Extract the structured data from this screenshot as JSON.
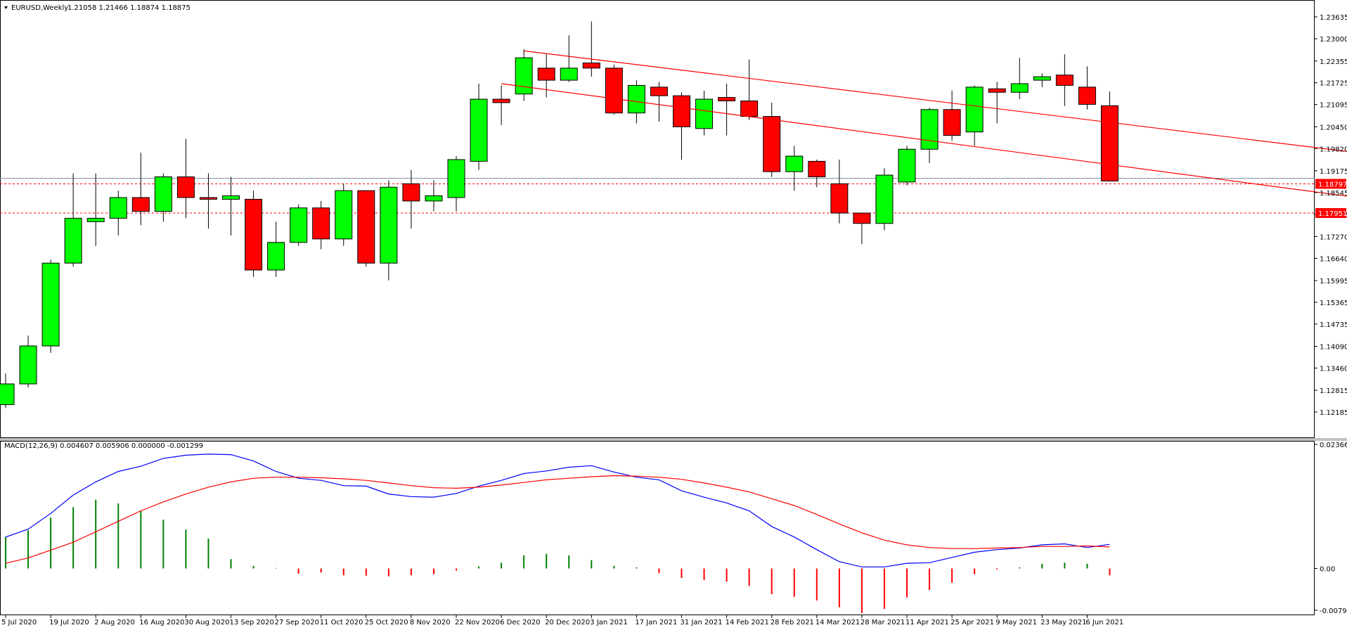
{
  "header": {
    "symbol": "EURUSD,Weekly",
    "ohlc": "1.21058 1.21466 1.18874 1.18875"
  },
  "colors": {
    "bull": "#00ff00",
    "bear": "#ff0000",
    "macd": "#0000ff",
    "signal": "#ff0000",
    "hist_pos": "#008000",
    "hist_neg": "#ff0000",
    "trend": "#ff0000"
  },
  "price_levels": {
    "current": "1.18797",
    "support": "1.17951"
  },
  "price_ticks": [
    "1.23635",
    "1.23000",
    "1.22355",
    "1.21725",
    "1.21095",
    "1.20450",
    "1.19820",
    "1.19175",
    "1.18545",
    "1.17905",
    "1.17270",
    "1.16640",
    "1.15995",
    "1.15365",
    "1.14735",
    "1.14090",
    "1.13460",
    "1.12815",
    "1.12185"
  ],
  "macd_header": "MACD(12,26,9) 0.004607 0.005906 0.000000 -0.001299",
  "macd_ticks": [
    "0.023663",
    "0.00",
    "-0.007975"
  ],
  "date_labels": [
    "5 Jul 2020",
    "19 Jul 2020",
    "2 Aug 2020",
    "16 Aug 2020",
    "30 Aug 2020",
    "13 Sep 2020",
    "27 Sep 2020",
    "11 Oct 2020",
    "25 Oct 2020",
    "8 Nov 2020",
    "22 Nov 2020",
    "6 Dec 2020",
    "20 Dec 2020",
    "3 Jan 2021",
    "17 Jan 2021",
    "31 Jan 2021",
    "14 Feb 2021",
    "28 Feb 2021",
    "14 Mar 2021",
    "28 Mar 2021",
    "11 Apr 2021",
    "25 Apr 2021",
    "9 May 2021",
    "23 May 2021",
    "6 Jun 2021"
  ],
  "chart_data": [
    {
      "type": "candlestick",
      "title": "EURUSD,Weekly",
      "ylim": [
        1.12185,
        1.23635
      ],
      "candles": [
        {
          "o": 1.124,
          "h": 1.133,
          "l": 1.123,
          "c": 1.13
        },
        {
          "o": 1.13,
          "h": 1.144,
          "l": 1.129,
          "c": 1.141
        },
        {
          "o": 1.141,
          "h": 1.166,
          "l": 1.139,
          "c": 1.165
        },
        {
          "o": 1.165,
          "h": 1.191,
          "l": 1.164,
          "c": 1.178
        },
        {
          "o": 1.177,
          "h": 1.191,
          "l": 1.17,
          "c": 1.178
        },
        {
          "o": 1.178,
          "h": 1.186,
          "l": 1.173,
          "c": 1.184
        },
        {
          "o": 1.184,
          "h": 1.197,
          "l": 1.176,
          "c": 1.18
        },
        {
          "o": 1.18,
          "h": 1.191,
          "l": 1.177,
          "c": 1.19
        },
        {
          "o": 1.19,
          "h": 1.201,
          "l": 1.178,
          "c": 1.184
        },
        {
          "o": 1.184,
          "h": 1.191,
          "l": 1.175,
          "c": 1.1835
        },
        {
          "o": 1.1835,
          "h": 1.19,
          "l": 1.173,
          "c": 1.1845
        },
        {
          "o": 1.1835,
          "h": 1.186,
          "l": 1.161,
          "c": 1.163
        },
        {
          "o": 1.163,
          "h": 1.177,
          "l": 1.161,
          "c": 1.171
        },
        {
          "o": 1.171,
          "h": 1.182,
          "l": 1.17,
          "c": 1.181
        },
        {
          "o": 1.181,
          "h": 1.183,
          "l": 1.169,
          "c": 1.172
        },
        {
          "o": 1.172,
          "h": 1.188,
          "l": 1.17,
          "c": 1.186
        },
        {
          "o": 1.186,
          "h": 1.186,
          "l": 1.164,
          "c": 1.165
        },
        {
          "o": 1.165,
          "h": 1.189,
          "l": 1.16,
          "c": 1.187
        },
        {
          "o": 1.188,
          "h": 1.192,
          "l": 1.175,
          "c": 1.183
        },
        {
          "o": 1.183,
          "h": 1.189,
          "l": 1.18,
          "c": 1.1845
        },
        {
          "o": 1.184,
          "h": 1.196,
          "l": 1.18,
          "c": 1.195
        },
        {
          "o": 1.1945,
          "h": 1.217,
          "l": 1.192,
          "c": 1.2125
        },
        {
          "o": 1.2125,
          "h": 1.2165,
          "l": 1.205,
          "c": 1.2115
        },
        {
          "o": 1.214,
          "h": 1.227,
          "l": 1.212,
          "c": 1.2245
        },
        {
          "o": 1.2215,
          "h": 1.2255,
          "l": 1.213,
          "c": 1.218
        },
        {
          "o": 1.218,
          "h": 1.231,
          "l": 1.2175,
          "c": 1.2215
        },
        {
          "o": 1.223,
          "h": 1.235,
          "l": 1.219,
          "c": 1.2215
        },
        {
          "o": 1.2215,
          "h": 1.2225,
          "l": 1.208,
          "c": 1.2085
        },
        {
          "o": 1.2085,
          "h": 1.218,
          "l": 1.2055,
          "c": 1.2165
        },
        {
          "o": 1.216,
          "h": 1.2175,
          "l": 1.206,
          "c": 1.2135
        },
        {
          "o": 1.2135,
          "h": 1.2145,
          "l": 1.195,
          "c": 1.2045
        },
        {
          "o": 1.204,
          "h": 1.215,
          "l": 1.202,
          "c": 1.2125
        },
        {
          "o": 1.213,
          "h": 1.217,
          "l": 1.202,
          "c": 1.212
        },
        {
          "o": 1.212,
          "h": 1.224,
          "l": 1.2065,
          "c": 1.2075
        },
        {
          "o": 1.2075,
          "h": 1.2115,
          "l": 1.19,
          "c": 1.1915
        },
        {
          "o": 1.1915,
          "h": 1.199,
          "l": 1.186,
          "c": 1.196
        },
        {
          "o": 1.1945,
          "h": 1.195,
          "l": 1.187,
          "c": 1.19
        },
        {
          "o": 1.188,
          "h": 1.195,
          "l": 1.1765,
          "c": 1.1795
        },
        {
          "o": 1.1795,
          "h": 1.179,
          "l": 1.1705,
          "c": 1.1765
        },
        {
          "o": 1.1765,
          "h": 1.1925,
          "l": 1.1745,
          "c": 1.1905
        },
        {
          "o": 1.1885,
          "h": 1.199,
          "l": 1.1875,
          "c": 1.198
        },
        {
          "o": 1.198,
          "h": 1.21,
          "l": 1.194,
          "c": 1.2095
        },
        {
          "o": 1.2095,
          "h": 1.215,
          "l": 1.2005,
          "c": 1.202
        },
        {
          "o": 1.203,
          "h": 1.2165,
          "l": 1.199,
          "c": 1.216
        },
        {
          "o": 1.2155,
          "h": 1.2175,
          "l": 1.2055,
          "c": 1.2145
        },
        {
          "o": 1.2145,
          "h": 1.2245,
          "l": 1.2125,
          "c": 1.217
        },
        {
          "o": 1.218,
          "h": 1.22,
          "l": 1.216,
          "c": 1.219
        },
        {
          "o": 1.2195,
          "h": 1.2255,
          "l": 1.2105,
          "c": 1.2165
        },
        {
          "o": 1.216,
          "h": 1.222,
          "l": 1.2095,
          "c": 1.211
        },
        {
          "o": 1.2106,
          "h": 1.2147,
          "l": 1.1887,
          "c": 1.1888
        }
      ],
      "trendlines": [
        {
          "from": [
            23,
            1.2265
          ],
          "to": [
            60,
            1.197
          ]
        },
        {
          "from": [
            22,
            1.217
          ],
          "to": [
            60,
            1.184
          ]
        }
      ]
    },
    {
      "type": "line",
      "title": "MACD(12,26,9)",
      "ylim": [
        -0.007975,
        0.023663
      ],
      "series": [
        {
          "values": [
            0.006,
            0.0075,
            0.0105,
            0.014,
            0.0165,
            0.0185,
            0.0195,
            0.021,
            0.0216,
            0.0218,
            0.0217,
            0.0205,
            0.0185,
            0.0172,
            0.0168,
            0.0158,
            0.0157,
            0.0142,
            0.0137,
            0.0136,
            0.0143,
            0.0157,
            0.0168,
            0.0181,
            0.0186,
            0.0193,
            0.0196,
            0.0184,
            0.0174,
            0.0169,
            0.0148,
            0.0136,
            0.0125,
            0.011,
            0.008,
            0.006,
            0.0036,
            0.0013,
            0.0003,
            0.0003,
            0.001,
            0.0011,
            0.0021,
            0.0031,
            0.0036,
            0.0039,
            0.0045,
            0.0047,
            0.004,
            0.0046
          ]
        },
        {
          "values": [
            0.001,
            0.002,
            0.0035,
            0.005,
            0.007,
            0.009,
            0.011,
            0.0127,
            0.0142,
            0.0155,
            0.0165,
            0.0172,
            0.0174,
            0.0174,
            0.0173,
            0.0171,
            0.0168,
            0.0163,
            0.0158,
            0.0154,
            0.0153,
            0.0155,
            0.0159,
            0.0164,
            0.0169,
            0.0172,
            0.0175,
            0.0177,
            0.0176,
            0.0174,
            0.017,
            0.0163,
            0.0155,
            0.0146,
            0.0133,
            0.012,
            0.0103,
            0.0085,
            0.0068,
            0.0054,
            0.0045,
            0.004,
            0.0038,
            0.0038,
            0.0039,
            0.004,
            0.0042,
            0.0042,
            0.0043,
            0.0041
          ]
        }
      ],
      "histogram": [
        0.006,
        0.0073,
        0.0097,
        0.0117,
        0.0131,
        0.0124,
        0.0111,
        0.0093,
        0.0074,
        0.0057,
        0.0018,
        0.0005,
        0.0001,
        -0.001,
        -0.0008,
        -0.0013,
        -0.0014,
        -0.0015,
        -0.0013,
        -0.0011,
        -0.0004,
        0.0004,
        0.0011,
        0.0025,
        0.0028,
        0.0025,
        0.0016,
        0.0005,
        0.0002,
        -0.0009,
        -0.0018,
        -0.0022,
        -0.0025,
        -0.0033,
        -0.0049,
        -0.0054,
        -0.0061,
        -0.0074,
        -0.0085,
        -0.0077,
        -0.0055,
        -0.0041,
        -0.0027,
        -0.0011,
        -0.0002,
        0.0002,
        0.0009,
        0.0011,
        0.0009,
        -0.0013
      ]
    }
  ]
}
